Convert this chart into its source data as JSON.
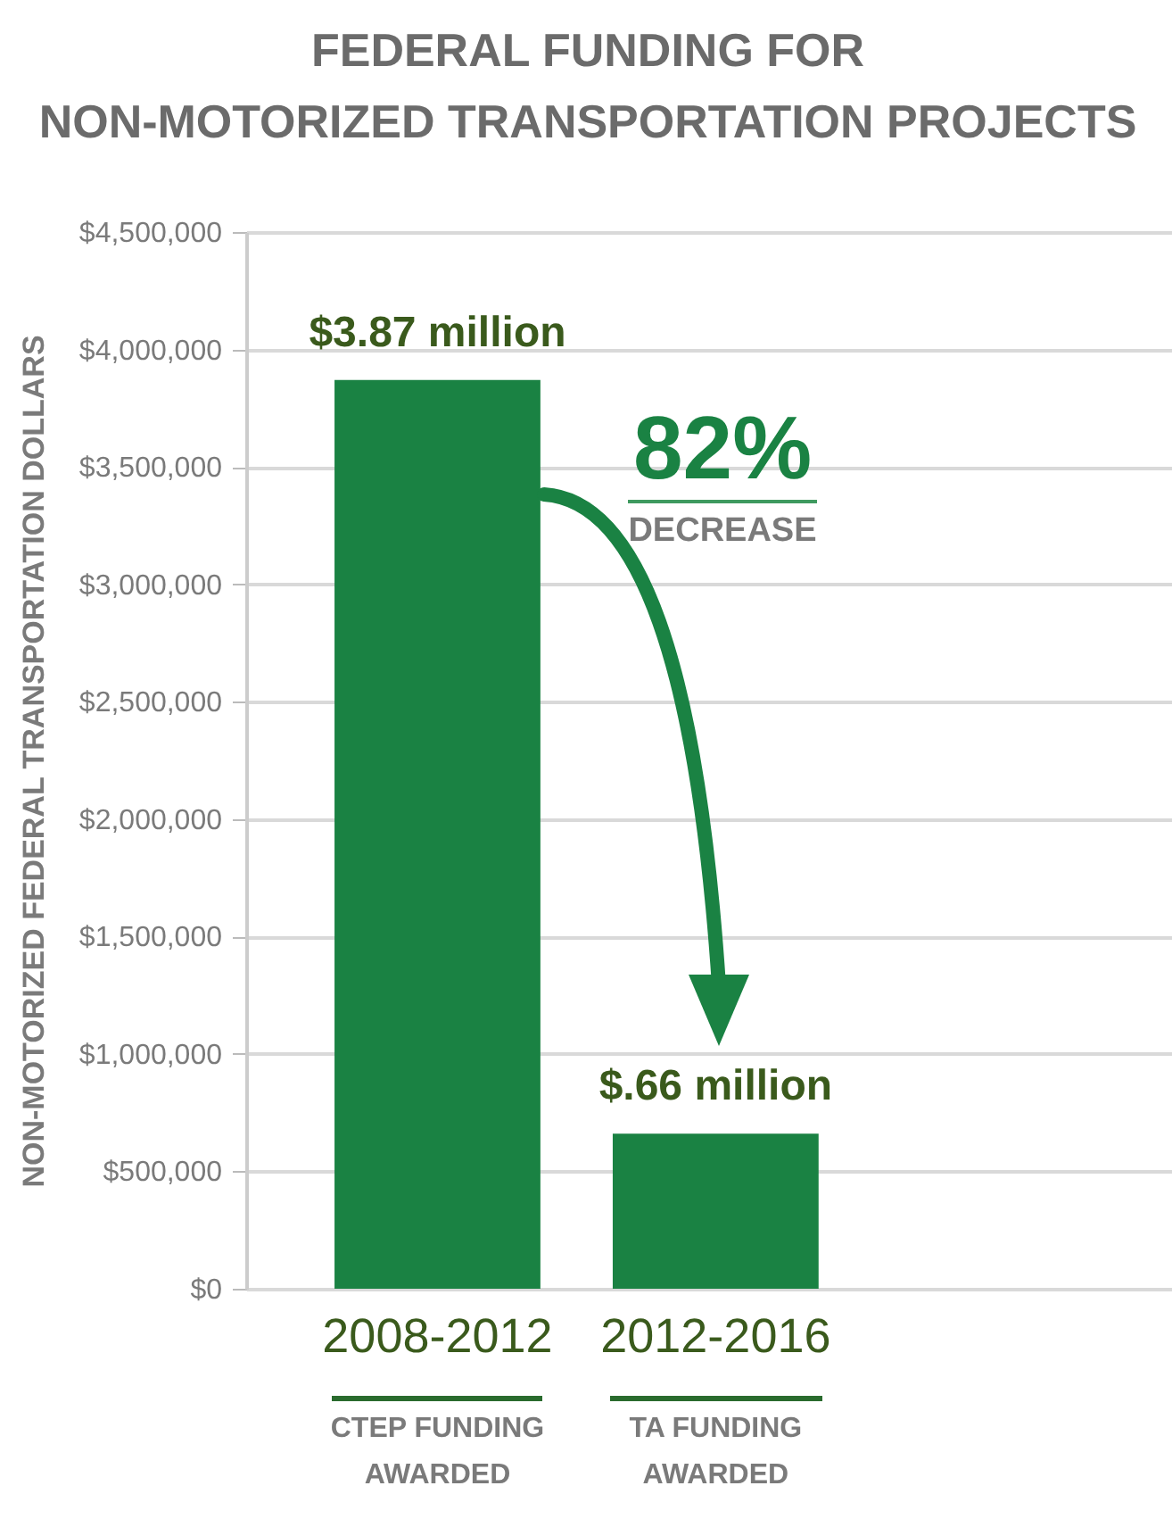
{
  "chart_data": {
    "type": "bar",
    "title": [
      "FEDERAL FUNDING FOR",
      "NON-MOTORIZED TRANSPORTATION PROJECTS"
    ],
    "ylabel": "NON-MOTORIZED FEDERAL TRANSPORTATION DOLLARS",
    "categories": [
      "2008-2012",
      "2012-2016"
    ],
    "values": [
      3870000,
      660000
    ],
    "value_labels": [
      "$3.87 million",
      "$.66 million"
    ],
    "color": "#1a8243",
    "ylim": [
      0,
      4500000
    ],
    "yticks": [
      {
        "value": 0,
        "label": "$0"
      },
      {
        "value": 500000,
        "label": "$500,000"
      },
      {
        "value": 1000000,
        "label": "$1,000,000"
      },
      {
        "value": 1500000,
        "label": "$1,500,000"
      },
      {
        "value": 2000000,
        "label": "$2,000,000"
      },
      {
        "value": 2500000,
        "label": "$2,500,000"
      },
      {
        "value": 3000000,
        "label": "$3,000,000"
      },
      {
        "value": 3500000,
        "label": "$3,500,000"
      },
      {
        "value": 4000000,
        "label": "$4,000,000"
      },
      {
        "value": 4500000,
        "label": "$4,500,000"
      }
    ],
    "grid": "y",
    "annotations": [
      "82%",
      "DECREASE",
      "CTEP FUNDING\nAWARDED",
      "TA FUNDING\nAWARDED"
    ]
  }
}
